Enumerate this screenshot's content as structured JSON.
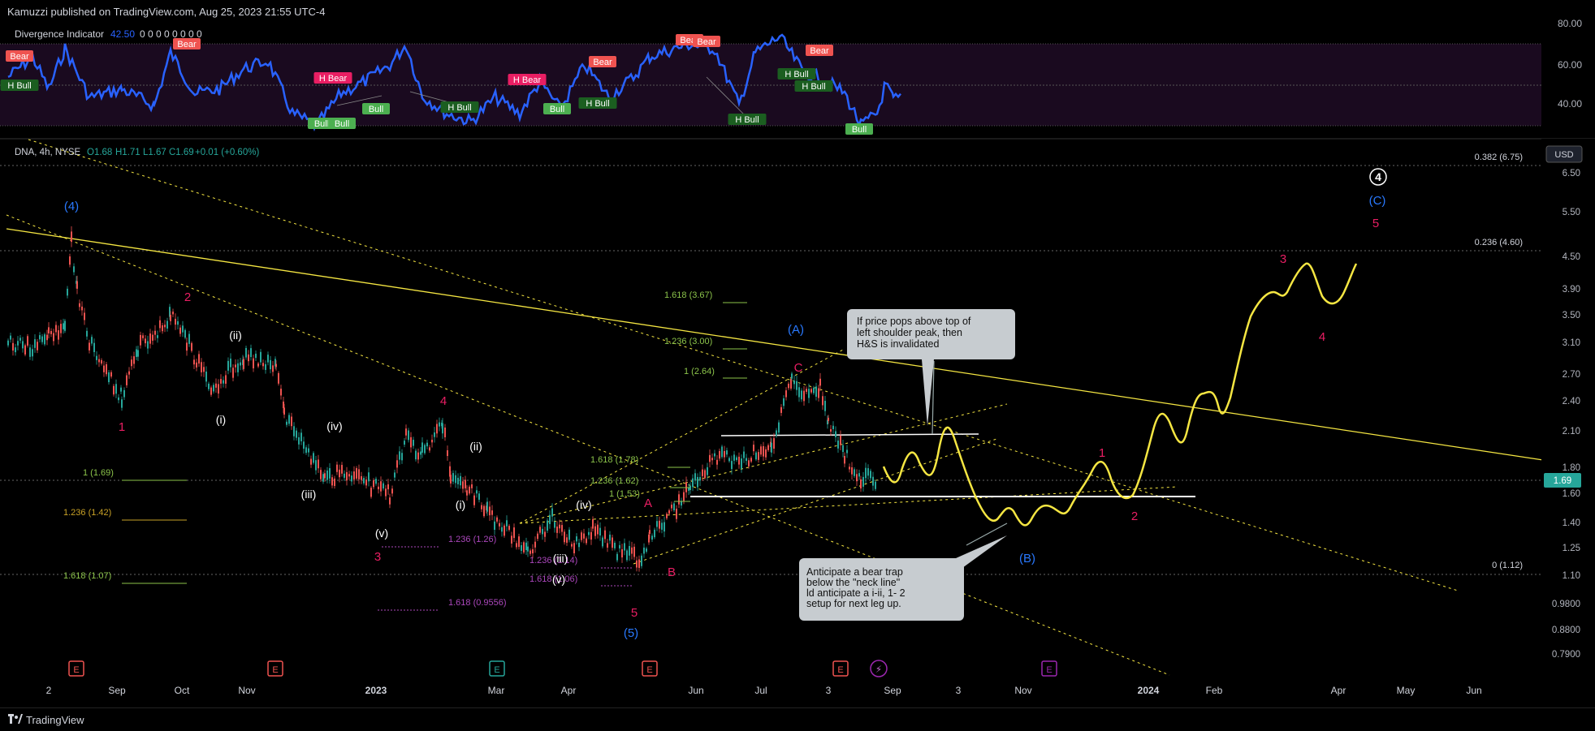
{
  "header": {
    "publisher": "Kamuzzi published on TradingView.com, Aug 25, 2023 21:55 UTC-4"
  },
  "footer": {
    "brand": "TradingView"
  },
  "indicator": {
    "name": "Divergence Indicator",
    "value": "42.50",
    "zeros": "0 0 0 0 0 0 0 0",
    "axis_labels": [
      "80.00",
      "60.00",
      "40.00"
    ],
    "tags": [
      {
        "t": "Bear",
        "kind": "bear"
      },
      {
        "t": "H Bull",
        "kind": "hbull"
      },
      {
        "t": "Bear",
        "kind": "bear"
      },
      {
        "t": "H Bear",
        "kind": "hbear"
      },
      {
        "t": "Bull",
        "kind": "bull"
      },
      {
        "t": "Bull",
        "kind": "bull"
      },
      {
        "t": "Bull",
        "kind": "bull"
      },
      {
        "t": "H Bull",
        "kind": "hbull"
      },
      {
        "t": "H Bear",
        "kind": "hbear"
      },
      {
        "t": "Bull",
        "kind": "bull"
      },
      {
        "t": "Bear",
        "kind": "bear"
      },
      {
        "t": "H Bull",
        "kind": "hbull"
      },
      {
        "t": "Bear",
        "kind": "bear"
      },
      {
        "t": "Bear",
        "kind": "bear"
      },
      {
        "t": "H Bull",
        "kind": "hbull"
      },
      {
        "t": "H Bull",
        "kind": "hbull"
      },
      {
        "t": "H Bull",
        "kind": "hbull"
      },
      {
        "t": "Bear",
        "kind": "bear"
      },
      {
        "t": "Bull",
        "kind": "bull"
      }
    ]
  },
  "colors": {
    "bg": "#000000",
    "up": "#26a69a",
    "down": "#ef5350",
    "osc": "#2962ff",
    "yellow": "#f5e642",
    "red_label": "#e91e63",
    "blue_label": "#2979ff",
    "white": "#ffffff",
    "green_fib": "#8bc34a",
    "purple_fib": "#ab47bc",
    "orange_fib": "#c9a227"
  },
  "chart_data": {
    "type": "candlestick",
    "symbol_line": "DNA, 4h, NYSE",
    "ohlc": {
      "o": "O1.68",
      "h": "H1.71",
      "l": "L1.67",
      "c": "C1.69",
      "chg": "+0.01 (+0.60%)"
    },
    "currency": "USD",
    "last_price": "1.69",
    "price_axis": [
      "6.50",
      "5.50",
      "4.50",
      "3.90",
      "3.50",
      "3.10",
      "2.70",
      "2.40",
      "2.10",
      "1.80",
      "1.60",
      "1.40",
      "1.25",
      "1.10",
      "0.9800",
      "0.8800",
      "0.7900"
    ],
    "x_ticks": [
      "2",
      "Sep",
      "Oct",
      "Nov",
      "2023",
      "Mar",
      "Apr",
      "Jun",
      "Jul",
      "3",
      "Sep",
      "3",
      "Nov",
      "2024",
      "Feb",
      "Apr",
      "May",
      "Jun"
    ],
    "fib_levels": [
      {
        "label": "0.382 (6.75)",
        "color": "white"
      },
      {
        "label": "0.236 (4.60)",
        "color": "white"
      },
      {
        "label": "0 (1.12)",
        "color": "white"
      },
      {
        "label": "1.618 (3.67)",
        "color": "green"
      },
      {
        "label": "1.236 (3.00)",
        "color": "green"
      },
      {
        "label": "1 (2.64)",
        "color": "green"
      },
      {
        "label": "1.618 (1.78)",
        "color": "green"
      },
      {
        "label": "1.236 (1.62)",
        "color": "green"
      },
      {
        "label": "1 (1.53)",
        "color": "green"
      },
      {
        "label": "1 (1.69)",
        "color": "green"
      },
      {
        "label": "1.236 (1.42)",
        "color": "orange"
      },
      {
        "label": "1.618 (1.07)",
        "color": "green"
      },
      {
        "label": "1.236 (1.26)",
        "color": "purple"
      },
      {
        "label": "1.236 (1.14)",
        "color": "purple"
      },
      {
        "label": "1.618 (1.06)",
        "color": "purple"
      },
      {
        "label": "1.618 (0.9556)",
        "color": "purple"
      }
    ],
    "wave_labels": [
      {
        "t": "(4)",
        "c": "blue"
      },
      {
        "t": "2",
        "c": "red"
      },
      {
        "t": "1",
        "c": "red"
      },
      {
        "t": "(ii)",
        "c": "white"
      },
      {
        "t": "(i)",
        "c": "white"
      },
      {
        "t": "(iv)",
        "c": "white"
      },
      {
        "t": "(iii)",
        "c": "white"
      },
      {
        "t": "(v)",
        "c": "white"
      },
      {
        "t": "3",
        "c": "red"
      },
      {
        "t": "4",
        "c": "red"
      },
      {
        "t": "(ii)",
        "c": "white"
      },
      {
        "t": "(i)",
        "c": "white"
      },
      {
        "t": "(iv)",
        "c": "white"
      },
      {
        "t": "(iii)",
        "c": "white"
      },
      {
        "t": "(v)",
        "c": "white"
      },
      {
        "t": "5",
        "c": "red"
      },
      {
        "t": "(5)",
        "c": "blue"
      },
      {
        "t": "A",
        "c": "red"
      },
      {
        "t": "B",
        "c": "red"
      },
      {
        "t": "C",
        "c": "red"
      },
      {
        "t": "(A)",
        "c": "blue"
      },
      {
        "t": "(B)",
        "c": "blue"
      },
      {
        "t": "1",
        "c": "red"
      },
      {
        "t": "2",
        "c": "red"
      },
      {
        "t": "3",
        "c": "red"
      },
      {
        "t": "4",
        "c": "red"
      },
      {
        "t": "5",
        "c": "red"
      },
      {
        "t": "(C)",
        "c": "blue"
      },
      {
        "t": "4",
        "c": "white_circle"
      }
    ],
    "events": [
      "E",
      "E",
      "E",
      "E",
      "E",
      "E"
    ],
    "annotations": [
      {
        "lines": [
          "If price pops above top of",
          "left shoulder peak, then",
          "H&S is invalidated"
        ]
      },
      {
        "lines": [
          "Anticipate a bear trap",
          "below the \"neck line\"",
          "ld anticipate a i-ii, 1- 2",
          "setup for next leg up."
        ]
      }
    ]
  }
}
